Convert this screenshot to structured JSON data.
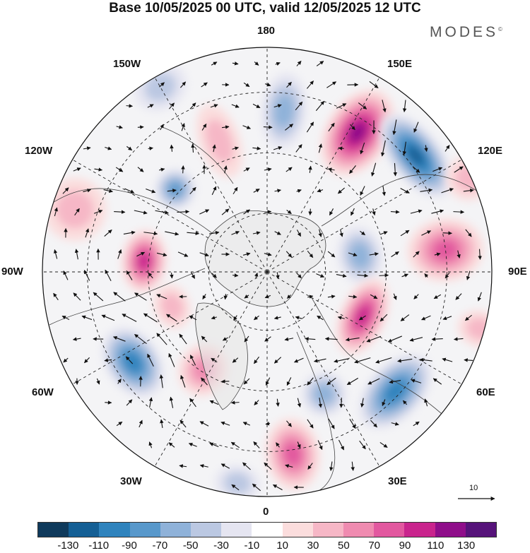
{
  "header": {
    "title": "Base 10/05/2025 00 UTC, valid 12/05/2025 12 UTC",
    "brand": "MODES",
    "brand_mark": "©"
  },
  "map": {
    "projection": "north-polar-stereographic",
    "lon_labels": {
      "180": "180",
      "150E": "150E",
      "120E": "120E",
      "90E": "90E",
      "60E": "60E",
      "30E": "30E",
      "0": "0",
      "30W": "30W",
      "60W": "60W",
      "90W": "90W",
      "120W": "120W",
      "150W": "150W"
    },
    "reference_vector": {
      "label": "10"
    },
    "anomalies": [
      {
        "lon": 147,
        "colat": 0.74,
        "value": 110,
        "sx": 0.14,
        "sy": 0.21
      },
      {
        "lon": 128,
        "colat": 0.84,
        "value": -110,
        "sx": 0.22,
        "sy": 0.11
      },
      {
        "lon": 174,
        "colat": 0.72,
        "value": -50,
        "sx": 0.1,
        "sy": 0.17
      },
      {
        "lon": 97,
        "colat": 0.8,
        "value": 70,
        "sx": 0.14,
        "sy": 0.17
      },
      {
        "lon": 100,
        "colat": 0.42,
        "value": -50,
        "sx": 0.13,
        "sy": 0.1
      },
      {
        "lon": 65,
        "colat": 0.47,
        "value": 90,
        "sx": 0.18,
        "sy": 0.1
      },
      {
        "lon": 47,
        "colat": 0.78,
        "value": -90,
        "sx": 0.2,
        "sy": 0.12
      },
      {
        "lon": 8,
        "colat": 0.82,
        "value": 70,
        "sx": 0.12,
        "sy": 0.16
      },
      {
        "lon": -33,
        "colat": 0.52,
        "value": 50,
        "sx": 0.11,
        "sy": 0.12
      },
      {
        "lon": -56,
        "colat": 0.72,
        "value": -90,
        "sx": 0.17,
        "sy": 0.12
      },
      {
        "lon": -95,
        "colat": 0.55,
        "value": 90,
        "sx": 0.14,
        "sy": 0.1
      },
      {
        "lon": -132,
        "colat": 0.55,
        "value": -70,
        "sx": 0.09,
        "sy": 0.09
      },
      {
        "lon": -160,
        "colat": 0.62,
        "value": 30,
        "sx": 0.09,
        "sy": 0.17
      },
      {
        "lon": -108,
        "colat": 0.9,
        "value": 30,
        "sx": 0.14,
        "sy": 0.14
      },
      {
        "lon": -150,
        "colat": 0.95,
        "value": -30,
        "sx": 0.12,
        "sy": 0.1
      },
      {
        "lon": 115,
        "colat": 0.99,
        "value": 30,
        "sx": 0.1,
        "sy": 0.1
      },
      {
        "lon": 75,
        "colat": 0.98,
        "value": 30,
        "sx": 0.08,
        "sy": 0.1
      },
      {
        "lon": 25,
        "colat": 0.6,
        "value": -50,
        "sx": 0.1,
        "sy": 0.1
      },
      {
        "lon": -8,
        "colat": 0.95,
        "value": -30,
        "sx": 0.1,
        "sy": 0.08
      },
      {
        "lon": -70,
        "colat": 0.45,
        "value": 30,
        "sx": 0.1,
        "sy": 0.08
      }
    ]
  },
  "colorbar": {
    "colors": [
      "#0f3a5c",
      "#145f95",
      "#2f83bd",
      "#5898cb",
      "#8fb2d9",
      "#bbc8e2",
      "#e5e5f1",
      "#ffffff",
      "#fbdddd",
      "#f6b7c6",
      "#ef8bb0",
      "#e2589f",
      "#c9248d",
      "#8f0e8a",
      "#56137a"
    ],
    "tick_labels": [
      "-130",
      "-110",
      "-90",
      "-70",
      "-50",
      "-30",
      "-10",
      "10",
      "30",
      "50",
      "70",
      "90",
      "110",
      "130"
    ],
    "land_color": "#e6e6e6"
  }
}
